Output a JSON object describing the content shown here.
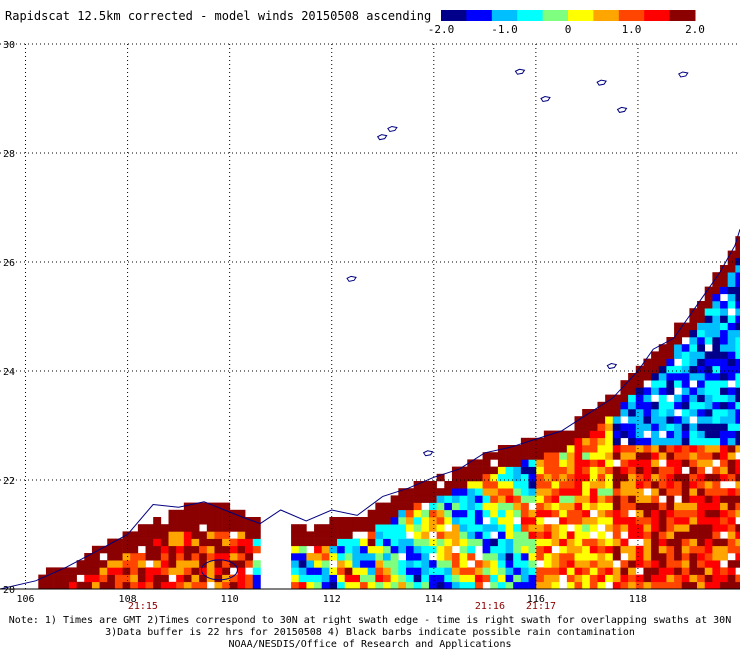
{
  "chart_data": {
    "type": "heatmap",
    "title": "Rapidscat 12.5km corrected - model winds 20150508 ascending",
    "colorbar": {
      "range": [
        -2.0,
        2.0
      ],
      "tick_labels": [
        "-2.0",
        "-1.0",
        "0",
        "1.0",
        "2.0"
      ],
      "colors": [
        "#00008b",
        "#0000ff",
        "#00bfff",
        "#00ffff",
        "#7fff7f",
        "#ffff00",
        "#ffa500",
        "#ff4500",
        "#ff0000",
        "#8b0000"
      ]
    },
    "x_axis": {
      "range": [
        105.5,
        120
      ],
      "tick_labels": [
        "106",
        "108",
        "110",
        "112",
        "114",
        "116",
        "118"
      ]
    },
    "y_axis": {
      "range": [
        20,
        30
      ],
      "tick_labels": [
        "20",
        "22",
        "24",
        "26",
        "28",
        "30"
      ]
    },
    "grid": true,
    "swath_times": [
      {
        "label": "21:15",
        "lon": 108.3
      },
      {
        "label": "21:16",
        "lon": 115.1
      },
      {
        "label": "21:17",
        "lon": 116.1
      }
    ],
    "coast_color": "#000080",
    "time_color": "#8b0000"
  },
  "notes": [
    "Note: 1) Times are GMT 2)Times correspond to 30N at right swath edge - time is right swath for overlapping swaths at 30N",
    "3)Data buffer is 22 hrs for 20150508 4) Black barbs indicate possible rain contamination",
    "NOAA/NESDIS/Office of Research and Applications"
  ]
}
